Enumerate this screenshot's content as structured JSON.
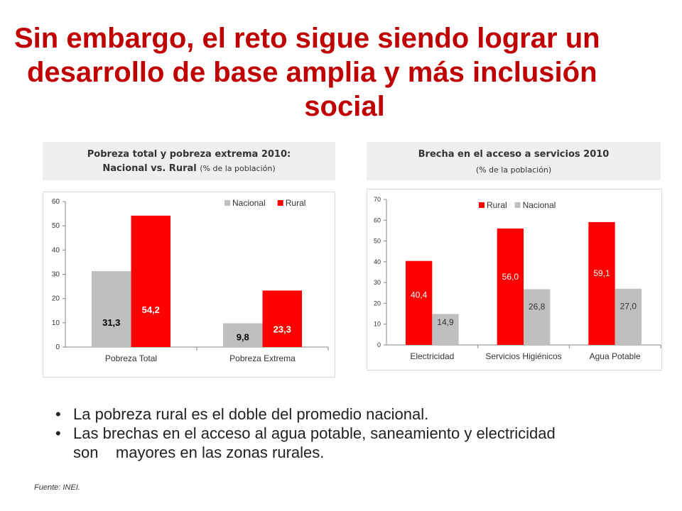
{
  "title": {
    "line1": "Sin embargo, el reto sigue siendo lograr un",
    "line2": "desarrollo de base amplia y más inclusión",
    "line3": "social"
  },
  "panels": [
    {
      "title_line1": "Pobreza total y pobreza extrema 2010:",
      "title_line2": "Nacional vs. Rural",
      "subtitle": "(% de la población)"
    },
    {
      "title_line1": "Brecha en el acceso a servicios 2010",
      "subtitle": "(% de la población)"
    }
  ],
  "chart_data": [
    {
      "type": "bar",
      "title": "Pobreza total y pobreza extrema 2010: Nacional vs. Rural (% de la población)",
      "categories": [
        "Pobreza Total",
        "Pobreza Extrema"
      ],
      "series": [
        {
          "name": "Nacional",
          "color": "#bfbfbf",
          "values": [
            31.3,
            9.8
          ],
          "labels": [
            "31,3",
            "9,8"
          ]
        },
        {
          "name": "Rural",
          "color": "#ff0000",
          "values": [
            54.2,
            23.3
          ],
          "labels": [
            "54,2",
            "23,3"
          ]
        }
      ],
      "ylim": [
        0,
        60
      ],
      "yticks": [
        0,
        10,
        20,
        30,
        40,
        50,
        60
      ],
      "legend_position": "top-right",
      "grid": false
    },
    {
      "type": "bar",
      "title": "Brecha en el acceso a servicios 2010 (% de la población)",
      "categories": [
        "Electricidad",
        "Servicios Higiénicos",
        "Agua Potable"
      ],
      "series": [
        {
          "name": "Rural",
          "color": "#ff0000",
          "values": [
            40.4,
            56.0,
            59.1
          ],
          "labels": [
            "40,4",
            "56,0",
            "59,1"
          ]
        },
        {
          "name": "Nacional",
          "color": "#bfbfbf",
          "values": [
            14.9,
            26.8,
            27.0
          ],
          "labels": [
            "14,9",
            "26,8",
            "27,0"
          ]
        }
      ],
      "ylim": [
        0,
        70
      ],
      "yticks": [
        0,
        10,
        20,
        30,
        40,
        50,
        60,
        70
      ],
      "legend_position": "top",
      "grid": false
    }
  ],
  "bullets": [
    "La pobreza rural es el doble del promedio nacional.",
    "Las brechas en el acceso al agua potable, saneamiento y electricidad",
    "son    mayores en las zonas rurales."
  ],
  "bullet_symbol": "•",
  "source": "Fuente: INEI."
}
